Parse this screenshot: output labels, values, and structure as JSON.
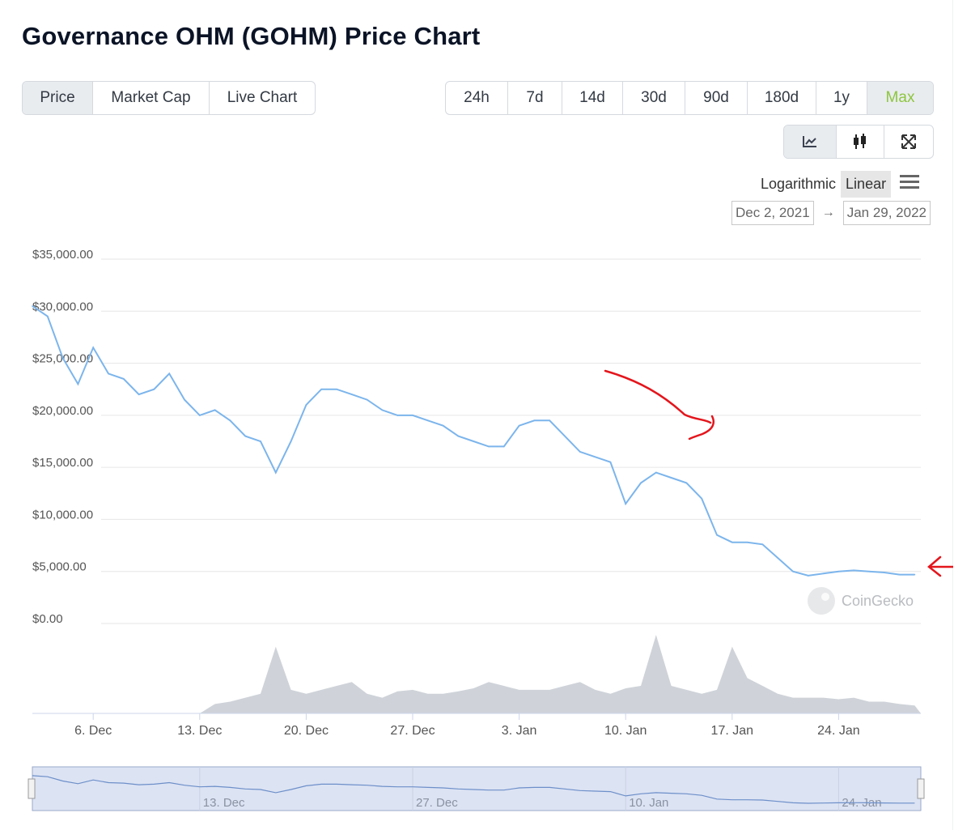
{
  "page": {
    "title": "Governance OHM (GOHM) Price Chart"
  },
  "tabs": [
    {
      "label": "Price",
      "active": true
    },
    {
      "label": "Market Cap",
      "active": false
    },
    {
      "label": "Live Chart",
      "active": false
    }
  ],
  "ranges": [
    {
      "label": "24h",
      "active": false
    },
    {
      "label": "7d",
      "active": false
    },
    {
      "label": "14d",
      "active": false
    },
    {
      "label": "30d",
      "active": false
    },
    {
      "label": "90d",
      "active": false
    },
    {
      "label": "180d",
      "active": false
    },
    {
      "label": "1y",
      "active": false
    },
    {
      "label": "Max",
      "active": true
    }
  ],
  "tools": [
    {
      "icon": "line-chart-icon",
      "active": true
    },
    {
      "icon": "candlestick-icon",
      "active": false
    },
    {
      "icon": "fullscreen-icon",
      "active": false
    }
  ],
  "scale": {
    "options": [
      "Logarithmic",
      "Linear"
    ],
    "selected": "Linear"
  },
  "date_range": {
    "from": "Dec 2, 2021",
    "arrow": "→",
    "to": "Jan 29, 2022"
  },
  "watermark": "CoinGecko",
  "colors": {
    "price_line": "#7cb5ec",
    "volume_fill": "#cfd3d9",
    "accent_active": "#8dc63f",
    "annotation": "#e4151c",
    "navigator_mask": "#dce3f3"
  },
  "chart_data": {
    "type": "line",
    "y_tick_labels": [
      "$35,000.00",
      "$30,000.00",
      "$25,000.00",
      "$20,000.00",
      "$15,000.00",
      "$10,000.00",
      "$5,000.00",
      "$0.00"
    ],
    "ylim": [
      0,
      35000
    ],
    "x_tick_labels": [
      "6. Dec",
      "13. Dec",
      "20. Dec",
      "27. Dec",
      "3. Jan",
      "10. Jan",
      "17. Jan",
      "24. Jan"
    ],
    "navigator_tick_labels": [
      "13. Dec",
      "27. Dec",
      "10. Jan",
      "24. Jan"
    ],
    "series": [
      {
        "x": [
          "2021-12-02",
          "2021-12-03",
          "2021-12-04",
          "2021-12-05",
          "2021-12-06",
          "2021-12-07",
          "2021-12-08",
          "2021-12-09",
          "2021-12-10",
          "2021-12-11",
          "2021-12-12",
          "2021-12-13",
          "2021-12-14",
          "2021-12-15",
          "2021-12-16",
          "2021-12-17",
          "2021-12-18",
          "2021-12-19",
          "2021-12-20",
          "2021-12-21",
          "2021-12-22",
          "2021-12-23",
          "2021-12-24",
          "2021-12-25",
          "2021-12-26",
          "2021-12-27",
          "2021-12-28",
          "2021-12-29",
          "2021-12-30",
          "2021-12-31",
          "2022-01-01",
          "2022-01-02",
          "2022-01-03",
          "2022-01-04",
          "2022-01-05",
          "2022-01-06",
          "2022-01-07",
          "2022-01-08",
          "2022-01-09",
          "2022-01-10",
          "2022-01-11",
          "2022-01-12",
          "2022-01-13",
          "2022-01-14",
          "2022-01-15",
          "2022-01-16",
          "2022-01-17",
          "2022-01-18",
          "2022-01-19",
          "2022-01-20",
          "2022-01-21",
          "2022-01-22",
          "2022-01-23",
          "2022-01-24",
          "2022-01-25",
          "2022-01-26",
          "2022-01-27",
          "2022-01-28",
          "2022-01-29"
        ],
        "values": [
          30500,
          29500,
          25500,
          23000,
          26500,
          24000,
          23500,
          22000,
          22500,
          24000,
          21500,
          20000,
          20500,
          19500,
          18000,
          17500,
          14500,
          17500,
          21000,
          22500,
          22500,
          22000,
          21500,
          20500,
          20000,
          20000,
          19500,
          19000,
          18000,
          17500,
          17000,
          17000,
          19000,
          19500,
          19500,
          18000,
          16500,
          16000,
          15500,
          11500,
          13500,
          14500,
          14000,
          13500,
          12000,
          8500,
          7800,
          7800,
          7600,
          6300,
          5000,
          4600,
          4800,
          5000,
          5100,
          5000,
          4900,
          4700,
          4700
        ]
      }
    ],
    "volume": [
      0,
      0,
      0,
      0,
      0,
      0,
      0,
      0,
      0,
      0,
      0,
      0,
      0.12,
      0.15,
      0.2,
      0.25,
      0.85,
      0.3,
      0.25,
      0.3,
      0.35,
      0.4,
      0.25,
      0.2,
      0.28,
      0.3,
      0.25,
      0.25,
      0.28,
      0.32,
      0.4,
      0.35,
      0.3,
      0.3,
      0.3,
      0.35,
      0.4,
      0.3,
      0.25,
      0.32,
      0.35,
      1.0,
      0.35,
      0.3,
      0.25,
      0.3,
      0.85,
      0.45,
      0.35,
      0.25,
      0.2,
      0.2,
      0.2,
      0.18,
      0.2,
      0.15,
      0.15,
      0.12,
      0.1
    ],
    "grid": true,
    "legend": "none"
  }
}
